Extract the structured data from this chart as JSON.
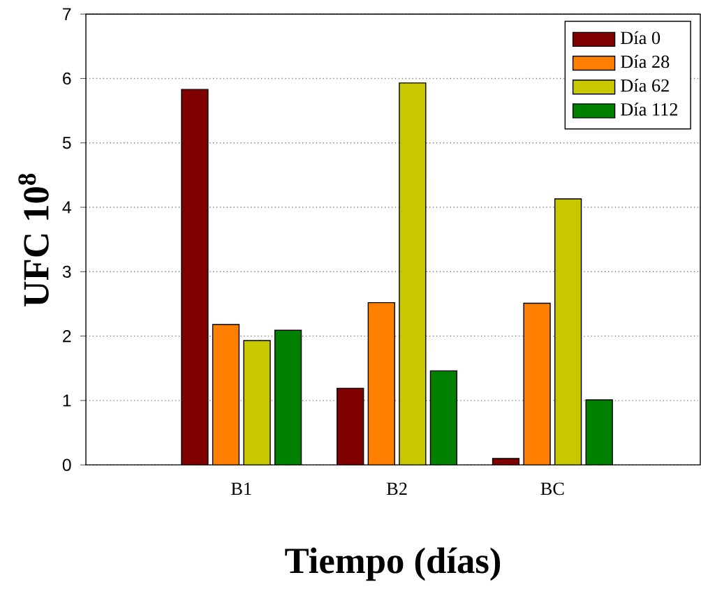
{
  "chart_data": {
    "type": "bar",
    "xlabel": "Tiempo (días)",
    "ylabel": "UFC 10$^{8}$",
    "categories": [
      "B1",
      "B2",
      "BC"
    ],
    "series": [
      {
        "name": "Día 0",
        "color": "#800000",
        "values": [
          5.83,
          1.19,
          0.1
        ]
      },
      {
        "name": "Día 28",
        "color": "#ff8000",
        "values": [
          2.18,
          2.52,
          2.51
        ]
      },
      {
        "name": "Día 62",
        "color": "#c8c800",
        "values": [
          1.93,
          5.93,
          4.13
        ]
      },
      {
        "name": "Día 112",
        "color": "#008000",
        "values": [
          2.09,
          1.46,
          1.01
        ]
      }
    ],
    "ylim": [
      0,
      7
    ],
    "yticks": [
      0,
      1,
      2,
      3,
      4,
      5,
      6,
      7
    ],
    "grid": "y",
    "legend": "top right"
  }
}
